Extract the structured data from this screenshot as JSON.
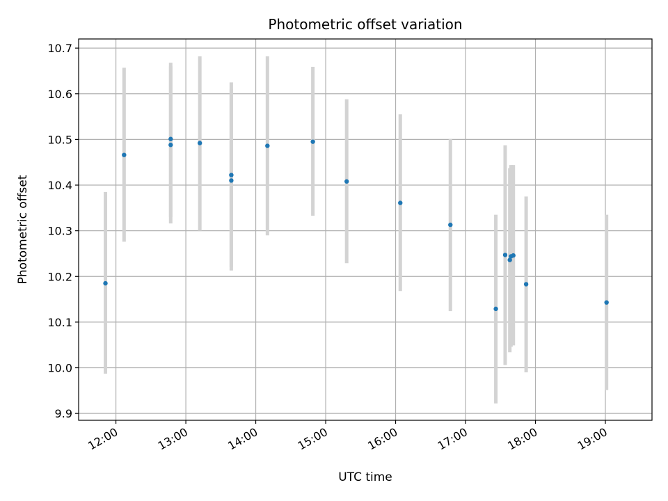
{
  "chart_data": {
    "type": "scatter",
    "title": "Photometric offset variation",
    "xlabel": "UTC time",
    "ylabel": "Photometric offset",
    "x_ticks": [
      "12:00",
      "13:00",
      "14:00",
      "15:00",
      "16:00",
      "17:00",
      "18:00",
      "19:00"
    ],
    "y_ticks": [
      "9.9",
      "10.0",
      "10.1",
      "10.2",
      "10.3",
      "10.4",
      "10.5",
      "10.6",
      "10.7"
    ],
    "xlim": [
      "11:28",
      "19:40"
    ],
    "ylim": [
      9.885,
      10.72
    ],
    "grid": true,
    "point_color": "#1f77b4",
    "errorbar_color": "#d3d3d3",
    "points": [
      {
        "x": "11:51",
        "y": 10.185,
        "lo": 9.987,
        "hi": 10.385
      },
      {
        "x": "12:07",
        "y": 10.466,
        "lo": 10.276,
        "hi": 10.657
      },
      {
        "x": "12:47",
        "y": 10.501,
        "lo": 10.33,
        "hi": 10.668
      },
      {
        "x": "12:47",
        "y": 10.488,
        "lo": 10.316,
        "hi": 10.66
      },
      {
        "x": "13:12",
        "y": 10.492,
        "lo": 10.3,
        "hi": 10.682
      },
      {
        "x": "13:39",
        "y": 10.422,
        "lo": 10.22,
        "hi": 10.625
      },
      {
        "x": "13:39",
        "y": 10.41,
        "lo": 10.213,
        "hi": 10.61
      },
      {
        "x": "14:10",
        "y": 10.486,
        "lo": 10.29,
        "hi": 10.682
      },
      {
        "x": "14:49",
        "y": 10.495,
        "lo": 10.333,
        "hi": 10.659
      },
      {
        "x": "15:18",
        "y": 10.408,
        "lo": 10.229,
        "hi": 10.588
      },
      {
        "x": "16:04",
        "y": 10.361,
        "lo": 10.168,
        "hi": 10.555
      },
      {
        "x": "16:47",
        "y": 10.313,
        "lo": 10.124,
        "hi": 10.501
      },
      {
        "x": "17:26",
        "y": 10.129,
        "lo": 9.922,
        "hi": 10.335
      },
      {
        "x": "17:34",
        "y": 10.247,
        "lo": 10.006,
        "hi": 10.487
      },
      {
        "x": "17:38",
        "y": 10.236,
        "lo": 10.034,
        "hi": 10.437
      },
      {
        "x": "17:39",
        "y": 10.244,
        "lo": 10.046,
        "hi": 10.444
      },
      {
        "x": "17:41",
        "y": 10.246,
        "lo": 10.049,
        "hi": 10.444
      },
      {
        "x": "17:52",
        "y": 10.183,
        "lo": 9.99,
        "hi": 10.375
      },
      {
        "x": "19:01",
        "y": 10.143,
        "lo": 9.951,
        "hi": 10.335
      }
    ]
  }
}
